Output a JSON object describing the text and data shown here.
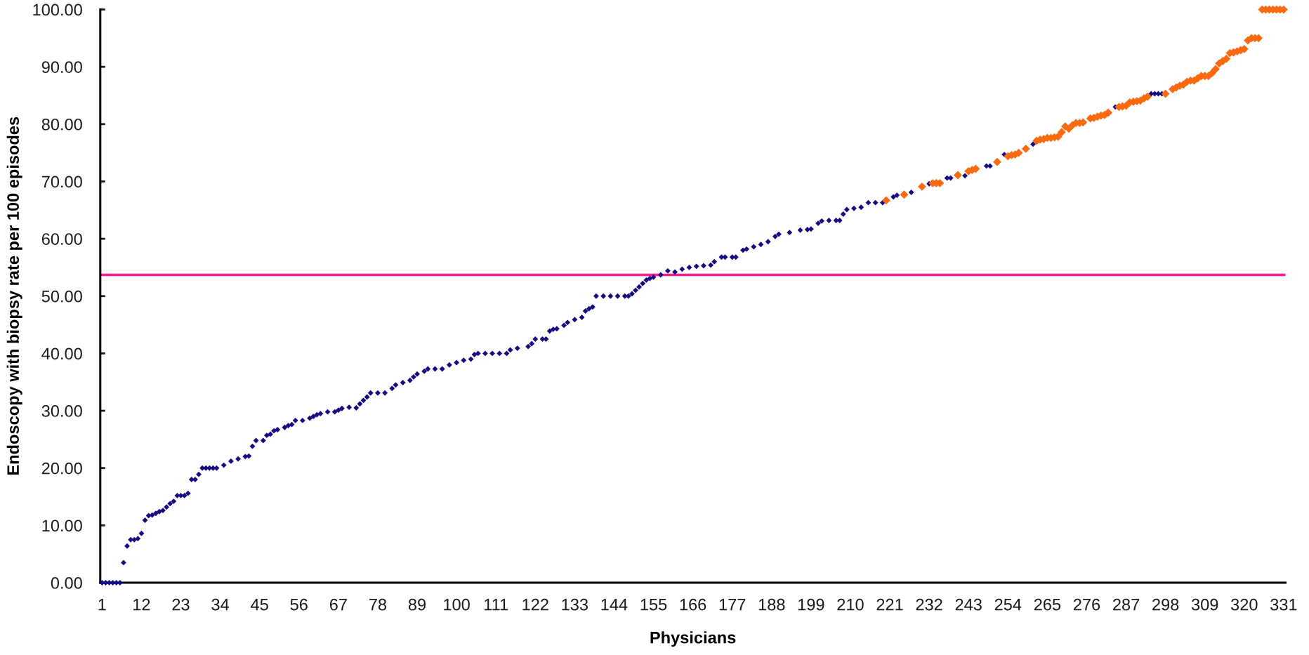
{
  "chart_data": {
    "type": "scatter",
    "xlabel": "Physicians",
    "ylabel": "Endoscopy with biopsy rate per 100 episodes",
    "marker": "diamond",
    "xlim": [
      0.5,
      331.5
    ],
    "xticks": [
      1,
      12,
      23,
      34,
      45,
      56,
      67,
      78,
      89,
      100,
      111,
      122,
      133,
      144,
      155,
      166,
      177,
      188,
      199,
      210,
      221,
      232,
      243,
      254,
      265,
      276,
      287,
      298,
      309,
      320,
      331
    ],
    "ylim": [
      0,
      100
    ],
    "yticks": [
      {
        "value": 0,
        "label": "0.00"
      },
      {
        "value": 10,
        "label": "10.00"
      },
      {
        "value": 20,
        "label": "20.00"
      },
      {
        "value": 30,
        "label": "30.00"
      },
      {
        "value": 40,
        "label": "40.00"
      },
      {
        "value": 50,
        "label": "50.00"
      },
      {
        "value": 60,
        "label": "60.00"
      },
      {
        "value": 70,
        "label": "70.00"
      },
      {
        "value": 80,
        "label": "80.00"
      },
      {
        "value": 90,
        "label": "90.00"
      },
      {
        "value": 100,
        "label": "100.00"
      }
    ],
    "ref_lines": [
      {
        "axis": "y",
        "value": 53.7,
        "color": "#fc1a8c"
      }
    ],
    "series": [
      {
        "color": "#160a80",
        "x": [
          1,
          2,
          3,
          4,
          5,
          6,
          7,
          8,
          9,
          10,
          11,
          12,
          13,
          14,
          15,
          16,
          17,
          18,
          19,
          20,
          21,
          22,
          23,
          24,
          25,
          26,
          27,
          28,
          29,
          30,
          31,
          32,
          33,
          35,
          37,
          39,
          41,
          42,
          43,
          44,
          46,
          47,
          48,
          49,
          50,
          52,
          53,
          54,
          55,
          57,
          59,
          60,
          61,
          62,
          64,
          66,
          67,
          68,
          70,
          72,
          73,
          74,
          75,
          76,
          78,
          80,
          82,
          83,
          85,
          87,
          88,
          89,
          91,
          92,
          94,
          96,
          98,
          100,
          102,
          104,
          105,
          106,
          108,
          110,
          112,
          114,
          115,
          117,
          120,
          121,
          122,
          124,
          125,
          126,
          127,
          128,
          130,
          131,
          133,
          135,
          136,
          137,
          138,
          139,
          141,
          143,
          145,
          147,
          148,
          149,
          150,
          151,
          152,
          153,
          154,
          155,
          157,
          159,
          161,
          163,
          165,
          167,
          169,
          171,
          172,
          174,
          175,
          177,
          178,
          180,
          181,
          183,
          185,
          187,
          189,
          190,
          193,
          196,
          198,
          199,
          201,
          202,
          204,
          206,
          207,
          208,
          209,
          211,
          213,
          215,
          217,
          219,
          222,
          223,
          227,
          232,
          237,
          238,
          242,
          248,
          249,
          253,
          261,
          284,
          294,
          295,
          296,
          297
        ],
        "values": [
          0,
          0,
          0,
          0,
          0,
          0,
          3.5,
          6.4,
          7.5,
          7.5,
          7.7,
          8.6,
          10.9,
          11.7,
          11.8,
          12.1,
          12.4,
          12.6,
          13.2,
          13.8,
          14.2,
          15.2,
          15.2,
          15.2,
          15.6,
          18.0,
          18.0,
          18.9,
          20.0,
          20.0,
          20.0,
          20.0,
          20.0,
          20.5,
          21.2,
          21.6,
          22.0,
          22.1,
          23.8,
          24.8,
          24.8,
          25.7,
          25.9,
          26.5,
          26.7,
          27.1,
          27.4,
          27.6,
          28.3,
          28.3,
          28.7,
          29.0,
          29.3,
          29.5,
          29.8,
          29.8,
          30.1,
          30.4,
          30.6,
          30.5,
          31.2,
          31.8,
          32.4,
          33.1,
          33.1,
          33.1,
          33.9,
          34.5,
          34.9,
          35.3,
          35.9,
          36.4,
          36.9,
          37.3,
          37.3,
          37.3,
          38.0,
          38.4,
          38.8,
          39.0,
          39.8,
          40.0,
          40.0,
          40.0,
          40.0,
          40.0,
          40.6,
          40.9,
          41.2,
          41.7,
          42.5,
          42.5,
          42.5,
          43.9,
          44.2,
          44.3,
          44.9,
          45.4,
          45.9,
          46.3,
          47.4,
          47.8,
          48.1,
          50.0,
          50.0,
          50.0,
          50.0,
          50.0,
          50.0,
          50.4,
          51.0,
          51.6,
          52.2,
          52.8,
          53.1,
          53.3,
          53.7,
          54.4,
          54.2,
          54.7,
          55.0,
          55.2,
          55.3,
          55.4,
          56.0,
          56.8,
          56.8,
          56.8,
          56.8,
          58.0,
          58.2,
          58.6,
          59.0,
          59.5,
          60.4,
          60.8,
          61.1,
          61.5,
          61.6,
          61.7,
          62.7,
          63.1,
          63.2,
          63.2,
          63.2,
          64.3,
          65.1,
          65.3,
          65.5,
          66.3,
          66.3,
          66.3,
          67.3,
          67.6,
          68.1,
          69.6,
          70.6,
          70.6,
          71.0,
          72.7,
          72.7,
          74.7,
          76.5,
          83.0,
          85.3,
          85.3,
          85.3,
          85.3
        ]
      },
      {
        "color": "#fb6a10",
        "x": [
          220,
          225,
          230,
          233,
          234,
          235,
          240,
          243,
          244,
          245,
          251,
          254,
          255,
          256,
          257,
          259,
          262,
          263,
          264,
          265,
          266,
          267,
          268,
          269,
          270,
          271,
          272,
          273,
          274,
          275,
          277,
          278,
          279,
          280,
          281,
          282,
          285,
          286,
          287,
          288,
          289,
          290,
          291,
          292,
          293,
          298,
          300,
          301,
          302,
          303,
          304,
          305,
          306,
          307,
          308,
          309,
          310,
          311,
          312,
          313,
          314,
          315,
          316,
          317,
          318,
          319,
          320,
          321,
          322,
          323,
          324,
          325,
          326,
          327,
          328,
          329,
          330,
          331
        ],
        "values": [
          66.7,
          67.7,
          69.1,
          69.7,
          69.7,
          69.7,
          71.1,
          71.8,
          72.0,
          72.2,
          73.4,
          74.4,
          74.6,
          74.7,
          75.0,
          75.7,
          77.1,
          77.3,
          77.4,
          77.6,
          77.6,
          77.7,
          77.8,
          78.6,
          79.6,
          79.2,
          79.8,
          80.2,
          80.2,
          80.3,
          81.0,
          81.1,
          81.3,
          81.5,
          81.6,
          82.0,
          83.0,
          83.1,
          83.2,
          83.8,
          83.9,
          84.0,
          84.1,
          84.5,
          84.8,
          85.3,
          86.1,
          86.4,
          86.7,
          86.9,
          87.4,
          87.6,
          87.6,
          88.0,
          88.4,
          88.4,
          88.4,
          88.9,
          89.6,
          90.6,
          91.0,
          91.4,
          92.4,
          92.5,
          92.7,
          92.9,
          93.1,
          94.6,
          95.0,
          95.0,
          95.0,
          100,
          100,
          100,
          100,
          100,
          100,
          100
        ]
      }
    ]
  }
}
